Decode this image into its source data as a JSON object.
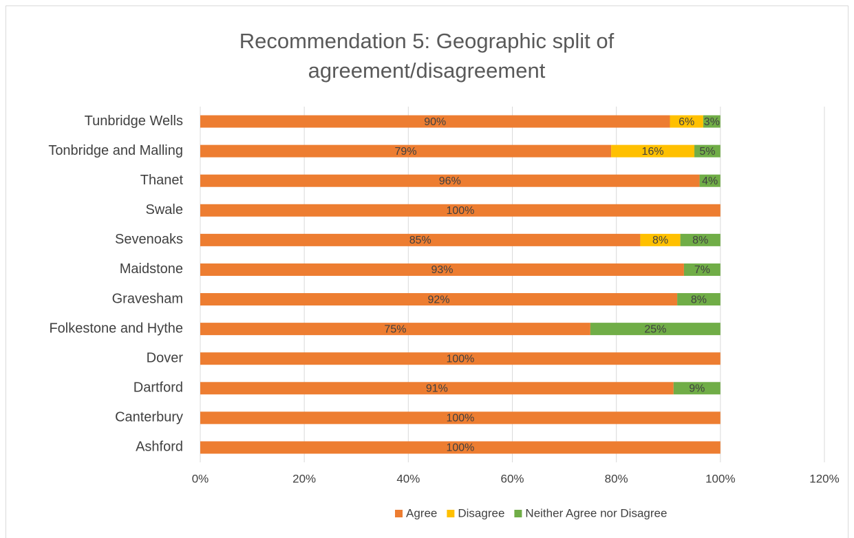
{
  "chart_data": {
    "type": "stacked-barh",
    "title": "Recommendation 5: Geographic split of agreement/disagreement",
    "categories": [
      "Tunbridge Wells",
      "Tonbridge and Malling",
      "Thanet",
      "Swale",
      "Sevenoaks",
      "Maidstone",
      "Gravesham",
      "Folkestone and Hythe",
      "Dover",
      "Dartford",
      "Canterbury",
      "Ashford"
    ],
    "series": [
      {
        "name": "Agree",
        "color": "#ED7D31",
        "values": [
          90.3,
          79,
          96,
          100,
          84.6,
          93,
          91.7,
          75,
          100,
          91,
          100,
          100
        ],
        "value_labels": [
          "90%",
          "79%",
          "96%",
          "100%",
          "85%",
          "93%",
          "92%",
          "75%",
          "100%",
          "91%",
          "100%",
          "100%"
        ]
      },
      {
        "name": "Disagree",
        "color": "#FFC000",
        "values": [
          6.4,
          16,
          0,
          0,
          7.7,
          0,
          0,
          0,
          0,
          0,
          0,
          0
        ],
        "value_labels": [
          "6%",
          "16%",
          null,
          null,
          "8%",
          null,
          null,
          null,
          null,
          null,
          null,
          null
        ]
      },
      {
        "name": "Neither Agree nor Disagree",
        "color": "#70AD47",
        "values": [
          3.3,
          5,
          4,
          0,
          7.7,
          7,
          8.3,
          25,
          0,
          9,
          0,
          0
        ],
        "value_labels": [
          "3%",
          "5%",
          "4%",
          null,
          "8%",
          "7%",
          "8%",
          "25%",
          null,
          "9%",
          null,
          null
        ]
      }
    ],
    "xlim": [
      0,
      120
    ],
    "xticks": [
      {
        "value": 0,
        "label": "0%"
      },
      {
        "value": 20,
        "label": "20%"
      },
      {
        "value": 40,
        "label": "40%"
      },
      {
        "value": 60,
        "label": "60%"
      },
      {
        "value": 80,
        "label": "80%"
      },
      {
        "value": 100,
        "label": "100%"
      },
      {
        "value": 120,
        "label": "120%"
      }
    ],
    "grid": true,
    "legend": "bottom"
  }
}
